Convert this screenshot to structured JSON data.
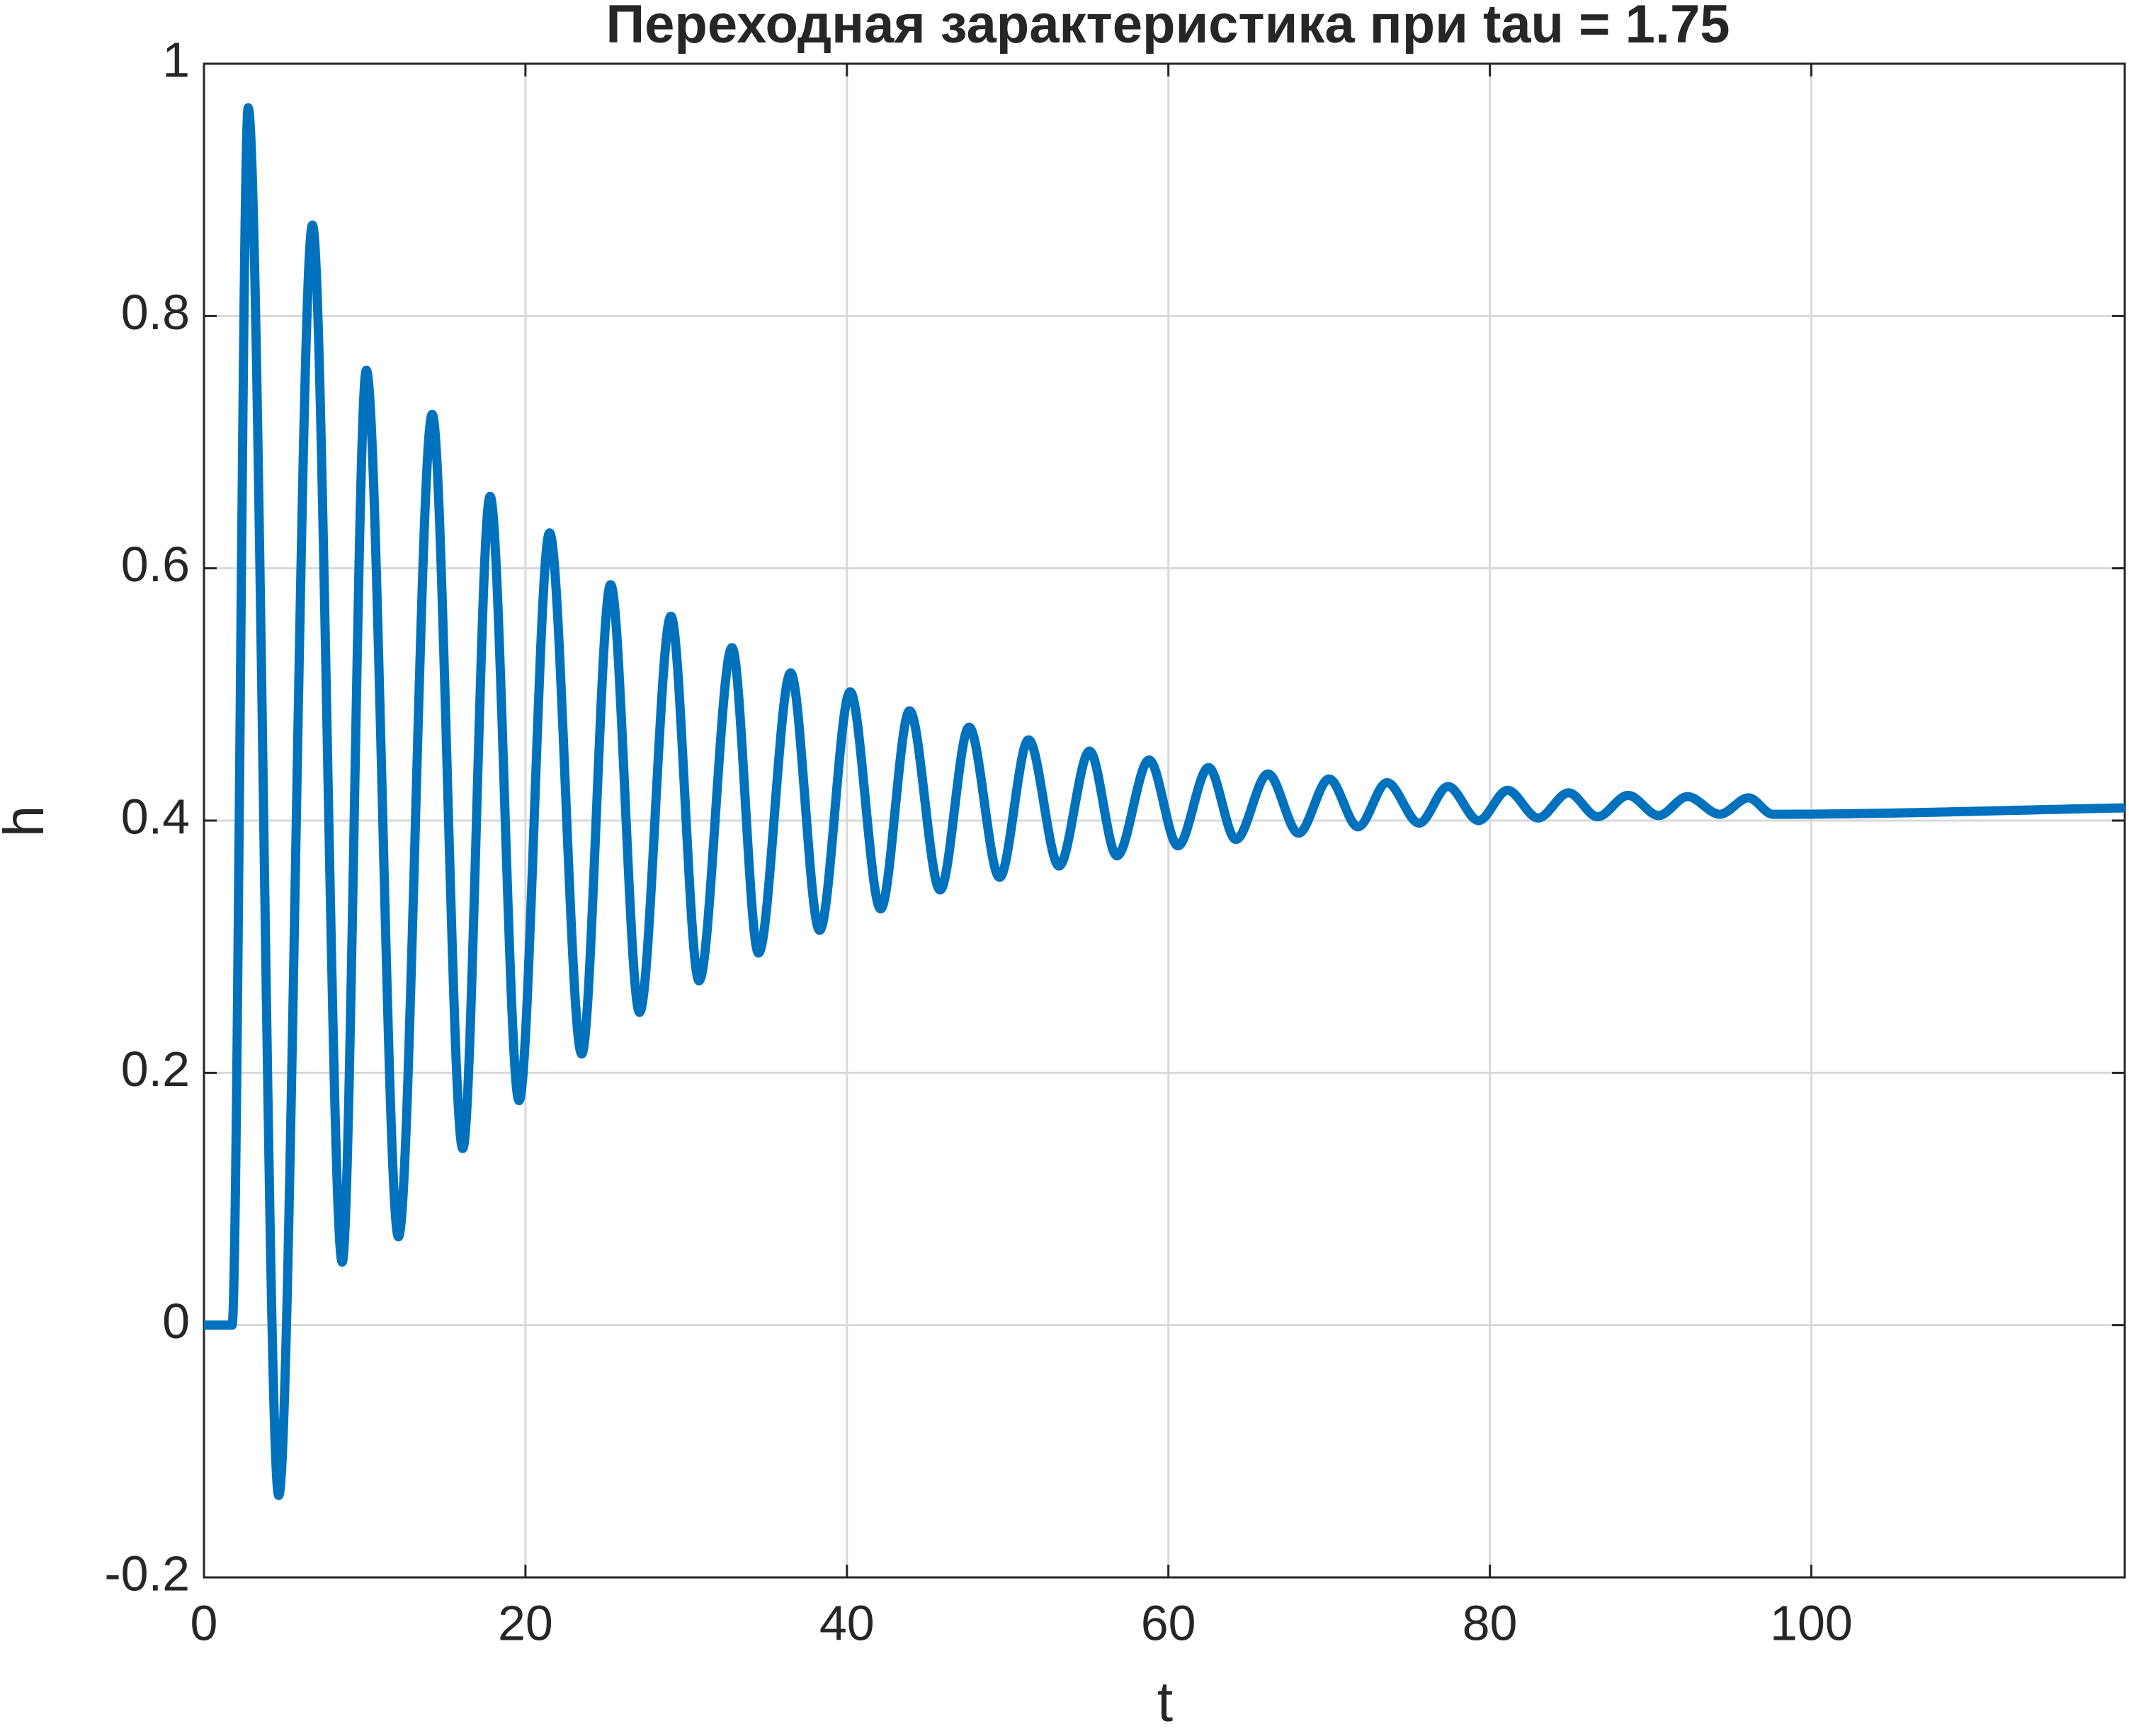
{
  "chart_data": {
    "type": "line",
    "title": "Переходная зарактеристика при tau = 1.75",
    "xlabel": "t",
    "ylabel": "h",
    "x": [
      0,
      1.75,
      2.75,
      4.65,
      6.75,
      8.6,
      10.1,
      12.1,
      14.2,
      16.1,
      17.8,
      19.6,
      21.5,
      23.5,
      25.3,
      27.1,
      29.05,
      30.8,
      32.85,
      34.5,
      36.5,
      38.3,
      40.2,
      42.1,
      43.9,
      45.8,
      47.6,
      49.5,
      51.3,
      53.2,
      55.1,
      56.8,
      58.8,
      60.6,
      62.5,
      64.2,
      66.2,
      68.1,
      70.0,
      71.8,
      73.6,
      75.6,
      77.4,
      79.3,
      81.1,
      83.0,
      84.9,
      86.7,
      88.6,
      90.5,
      92.3,
      94.3,
      96.1,
      97.6,
      119.5
    ],
    "series": [
      {
        "color": "#0072bd",
        "values": [
          0,
          0,
          0.965,
          -0.135,
          0.872,
          0.05,
          0.757,
          0.07,
          0.722,
          0.14,
          0.657,
          0.178,
          0.628,
          0.215,
          0.587,
          0.248,
          0.562,
          0.273,
          0.537,
          0.295,
          0.517,
          0.313,
          0.502,
          0.33,
          0.487,
          0.345,
          0.474,
          0.355,
          0.464,
          0.364,
          0.455,
          0.372,
          0.448,
          0.38,
          0.442,
          0.385,
          0.437,
          0.39,
          0.433,
          0.395,
          0.43,
          0.398,
          0.427,
          0.4,
          0.424,
          0.402,
          0.422,
          0.403,
          0.42,
          0.404,
          0.419,
          0.405,
          0.418,
          0.405,
          0.41
        ]
      }
    ],
    "xlim": [
      0,
      119.5
    ],
    "xticks": [
      0,
      20,
      40,
      60,
      80,
      100
    ],
    "ylim": [
      -0.2,
      1
    ],
    "yticks": [
      -0.2,
      0,
      0.2,
      0.4,
      0.6,
      0.8,
      1
    ],
    "grid": true
  }
}
